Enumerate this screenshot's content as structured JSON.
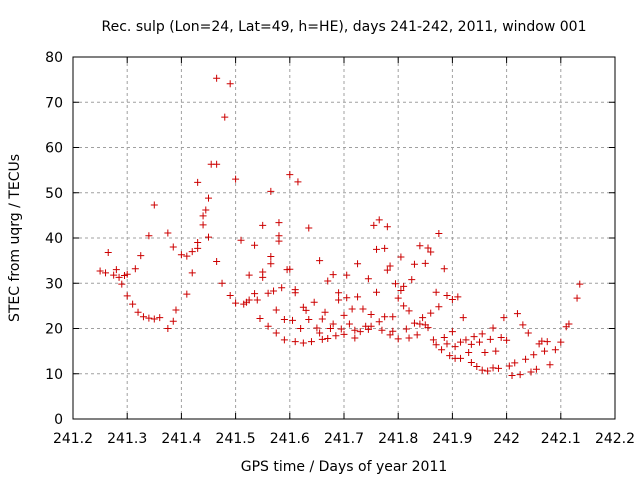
{
  "chart_data": {
    "type": "scatter",
    "title": "Rec. sulp (Lon=24, Lat=49, h=HE), days 241-242, 2011, window 001",
    "xlabel": "GPS time / Days of year 2011",
    "ylabel": "STEC from uqrg / TECUs",
    "xlim": [
      241.2,
      242.2
    ],
    "ylim": [
      0,
      80
    ],
    "xticks": [
      241.2,
      241.3,
      241.4,
      241.5,
      241.6,
      241.7,
      241.8,
      241.9,
      242,
      242.1,
      242.2
    ],
    "xtick_labels": [
      "241.2",
      "241.3",
      "241.4",
      "241.5",
      "241.6",
      "241.7",
      "241.8",
      "241.9",
      "242",
      "242.1",
      "242.2"
    ],
    "yticks": [
      0,
      10,
      20,
      30,
      40,
      50,
      60,
      70,
      80
    ],
    "ytick_labels": [
      "0",
      "10",
      "20",
      "30",
      "40",
      "50",
      "60",
      "70",
      "80"
    ],
    "grid": true,
    "marker": "plus",
    "color": "#cc0000",
    "series": [
      {
        "name": "STEC",
        "points": [
          [
            241.25,
            32.7
          ],
          [
            241.26,
            32.3
          ],
          [
            241.265,
            36.8
          ],
          [
            241.275,
            31.8
          ],
          [
            241.28,
            33.0
          ],
          [
            241.285,
            31.3
          ],
          [
            241.29,
            29.8
          ],
          [
            241.295,
            31.7
          ],
          [
            241.3,
            32.0
          ],
          [
            241.3,
            27.2
          ],
          [
            241.31,
            25.4
          ],
          [
            241.315,
            33.2
          ],
          [
            241.32,
            23.6
          ],
          [
            241.325,
            36.1
          ],
          [
            241.33,
            22.6
          ],
          [
            241.34,
            22.3
          ],
          [
            241.34,
            40.5
          ],
          [
            241.35,
            22.1
          ],
          [
            241.35,
            47.3
          ],
          [
            241.36,
            22.4
          ],
          [
            241.375,
            41.1
          ],
          [
            241.375,
            20.0
          ],
          [
            241.385,
            21.6
          ],
          [
            241.385,
            38.0
          ],
          [
            241.39,
            24.1
          ],
          [
            241.4,
            36.3
          ],
          [
            241.41,
            27.6
          ],
          [
            241.41,
            36.0
          ],
          [
            241.42,
            32.3
          ],
          [
            241.42,
            37.0
          ],
          [
            241.43,
            37.7
          ],
          [
            241.43,
            39.0
          ],
          [
            241.43,
            52.3
          ],
          [
            241.44,
            42.9
          ],
          [
            241.44,
            44.9
          ],
          [
            241.445,
            46.2
          ],
          [
            241.45,
            48.8
          ],
          [
            241.45,
            40.2
          ],
          [
            241.455,
            56.3
          ],
          [
            241.465,
            56.3
          ],
          [
            241.465,
            75.3
          ],
          [
            241.465,
            34.8
          ],
          [
            241.475,
            30.0
          ],
          [
            241.48,
            66.7
          ],
          [
            241.49,
            74.1
          ],
          [
            241.49,
            27.3
          ],
          [
            241.5,
            53.0
          ],
          [
            241.5,
            25.6
          ],
          [
            241.51,
            39.5
          ],
          [
            241.515,
            25.4
          ],
          [
            241.52,
            25.8
          ],
          [
            241.525,
            31.8
          ],
          [
            241.525,
            26.3
          ],
          [
            241.535,
            38.4
          ],
          [
            241.535,
            27.7
          ],
          [
            241.54,
            26.3
          ],
          [
            241.545,
            22.2
          ],
          [
            241.55,
            31.3
          ],
          [
            241.55,
            32.5
          ],
          [
            241.55,
            42.8
          ],
          [
            241.56,
            20.5
          ],
          [
            241.56,
            27.8
          ],
          [
            241.565,
            34.3
          ],
          [
            241.565,
            35.9
          ],
          [
            241.565,
            50.3
          ],
          [
            241.57,
            28.3
          ],
          [
            241.575,
            19.0
          ],
          [
            241.575,
            24.1
          ],
          [
            241.58,
            40.5
          ],
          [
            241.58,
            39.3
          ],
          [
            241.58,
            43.4
          ],
          [
            241.585,
            29.0
          ],
          [
            241.59,
            17.5
          ],
          [
            241.59,
            22.0
          ],
          [
            241.595,
            33.0
          ],
          [
            241.6,
            33.1
          ],
          [
            241.6,
            54.0
          ],
          [
            241.605,
            21.8
          ],
          [
            241.61,
            17.1
          ],
          [
            241.61,
            28.6
          ],
          [
            241.61,
            27.9
          ],
          [
            241.615,
            52.4
          ],
          [
            241.62,
            20.0
          ],
          [
            241.625,
            16.8
          ],
          [
            241.625,
            24.7
          ],
          [
            241.63,
            24.0
          ],
          [
            241.635,
            42.2
          ],
          [
            241.635,
            22.0
          ],
          [
            241.64,
            17.1
          ],
          [
            241.645,
            25.8
          ],
          [
            241.65,
            20.1
          ],
          [
            241.655,
            19.0
          ],
          [
            241.655,
            35.0
          ],
          [
            241.66,
            17.6
          ],
          [
            241.66,
            22.1
          ],
          [
            241.665,
            23.6
          ],
          [
            241.67,
            17.8
          ],
          [
            241.67,
            30.5
          ],
          [
            241.675,
            20.0
          ],
          [
            241.68,
            31.9
          ],
          [
            241.68,
            21.0
          ],
          [
            241.685,
            18.4
          ],
          [
            241.69,
            27.9
          ],
          [
            241.69,
            26.3
          ],
          [
            241.695,
            19.9
          ],
          [
            241.7,
            22.9
          ],
          [
            241.7,
            18.7
          ],
          [
            241.705,
            26.8
          ],
          [
            241.705,
            31.8
          ],
          [
            241.71,
            21.0
          ],
          [
            241.715,
            24.3
          ],
          [
            241.72,
            19.6
          ],
          [
            241.72,
            17.9
          ],
          [
            241.725,
            27.0
          ],
          [
            241.725,
            34.3
          ],
          [
            241.73,
            19.3
          ],
          [
            241.735,
            24.3
          ],
          [
            241.74,
            20.5
          ],
          [
            241.745,
            19.8
          ],
          [
            241.745,
            31.0
          ],
          [
            241.75,
            23.1
          ],
          [
            241.75,
            20.5
          ],
          [
            241.755,
            42.8
          ],
          [
            241.76,
            28.0
          ],
          [
            241.76,
            37.5
          ],
          [
            241.765,
            21.5
          ],
          [
            241.765,
            44.0
          ],
          [
            241.77,
            19.6
          ],
          [
            241.775,
            37.7
          ],
          [
            241.775,
            22.6
          ],
          [
            241.78,
            42.5
          ],
          [
            241.78,
            32.9
          ],
          [
            241.785,
            33.8
          ],
          [
            241.785,
            18.6
          ],
          [
            241.79,
            22.6
          ],
          [
            241.79,
            19.4
          ],
          [
            241.795,
            29.9
          ],
          [
            241.8,
            26.7
          ],
          [
            241.8,
            17.7
          ],
          [
            241.805,
            35.8
          ],
          [
            241.805,
            28.4
          ],
          [
            241.81,
            25.0
          ],
          [
            241.81,
            29.3
          ],
          [
            241.815,
            19.9
          ],
          [
            241.82,
            17.9
          ],
          [
            241.82,
            23.9
          ],
          [
            241.825,
            30.8
          ],
          [
            241.83,
            21.2
          ],
          [
            241.83,
            34.2
          ],
          [
            241.835,
            18.6
          ],
          [
            241.84,
            21.0
          ],
          [
            241.84,
            38.3
          ],
          [
            241.845,
            22.4
          ],
          [
            241.85,
            20.8
          ],
          [
            241.85,
            34.4
          ],
          [
            241.855,
            20.2
          ],
          [
            241.855,
            37.8
          ],
          [
            241.86,
            36.9
          ],
          [
            241.86,
            23.4
          ],
          [
            241.865,
            17.5
          ],
          [
            241.87,
            16.4
          ],
          [
            241.87,
            28.0
          ],
          [
            241.875,
            41.0
          ],
          [
            241.875,
            24.8
          ],
          [
            241.88,
            15.3
          ],
          [
            241.885,
            18.0
          ],
          [
            241.885,
            33.2
          ],
          [
            241.89,
            27.3
          ],
          [
            241.89,
            16.6
          ],
          [
            241.895,
            14.0
          ],
          [
            241.9,
            19.3
          ],
          [
            241.9,
            26.4
          ],
          [
            241.905,
            16.0
          ],
          [
            241.905,
            13.4
          ],
          [
            241.91,
            27.0
          ],
          [
            241.915,
            17.0
          ],
          [
            241.915,
            13.4
          ],
          [
            241.92,
            22.4
          ],
          [
            241.925,
            17.5
          ],
          [
            241.93,
            14.7
          ],
          [
            241.935,
            16.5
          ],
          [
            241.935,
            12.5
          ],
          [
            241.94,
            18.2
          ],
          [
            241.945,
            11.6
          ],
          [
            241.95,
            17.0
          ],
          [
            241.955,
            10.8
          ],
          [
            241.955,
            18.8
          ],
          [
            241.96,
            14.7
          ],
          [
            241.965,
            10.6
          ],
          [
            241.97,
            17.6
          ],
          [
            241.975,
            11.3
          ],
          [
            241.975,
            20.1
          ],
          [
            241.98,
            15.0
          ],
          [
            241.985,
            11.2
          ],
          [
            241.99,
            18.0
          ],
          [
            241.995,
            22.4
          ],
          [
            242.0,
            17.4
          ],
          [
            242.005,
            11.7
          ],
          [
            242.01,
            9.6
          ],
          [
            242.015,
            12.4
          ],
          [
            242.02,
            23.3
          ],
          [
            242.025,
            9.8
          ],
          [
            242.03,
            20.8
          ],
          [
            242.035,
            13.2
          ],
          [
            242.04,
            19.0
          ],
          [
            242.045,
            10.4
          ],
          [
            242.05,
            14.2
          ],
          [
            242.055,
            11.0
          ],
          [
            242.06,
            16.6
          ],
          [
            242.065,
            17.2
          ],
          [
            242.07,
            15.0
          ],
          [
            242.075,
            17.1
          ],
          [
            242.08,
            12.0
          ],
          [
            242.09,
            15.3
          ],
          [
            242.1,
            17.0
          ],
          [
            242.11,
            20.4
          ],
          [
            242.115,
            21.0
          ],
          [
            242.13,
            26.7
          ],
          [
            242.135,
            29.8
          ]
        ]
      }
    ]
  }
}
